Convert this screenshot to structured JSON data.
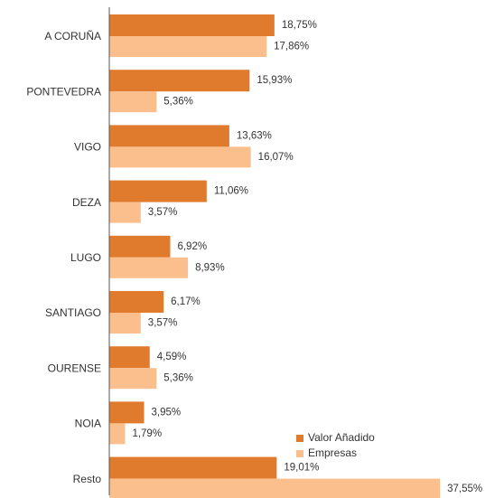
{
  "chart_data": {
    "type": "bar",
    "orientation": "horizontal",
    "categories": [
      "A CORUÑA",
      "PONTEVEDRA",
      "VIGO",
      "DEZA",
      "LUGO",
      "SANTIAGO",
      "OURENSE",
      "NOIA",
      "Resto"
    ],
    "series": [
      {
        "name": "Valor Añadido",
        "color": "#e07b2e",
        "values": [
          18.75,
          15.93,
          13.63,
          11.06,
          6.92,
          6.17,
          4.59,
          3.95,
          19.01
        ],
        "value_labels": [
          "18,75%",
          "15,93%",
          "13,63%",
          "11,06%",
          "6,92%",
          "6,17%",
          "4,59%",
          "3,95%",
          "19,01%"
        ]
      },
      {
        "name": "Empresas",
        "color": "#fbbf8e",
        "values": [
          17.86,
          5.36,
          16.07,
          3.57,
          8.93,
          3.57,
          5.36,
          1.79,
          37.55
        ],
        "value_labels": [
          "17,86%",
          "5,36%",
          "16,07%",
          "3,57%",
          "8,93%",
          "3,57%",
          "5,36%",
          "1,79%",
          "37,55%"
        ]
      }
    ],
    "xlim": [
      0,
      40
    ],
    "legend": "lower right"
  }
}
